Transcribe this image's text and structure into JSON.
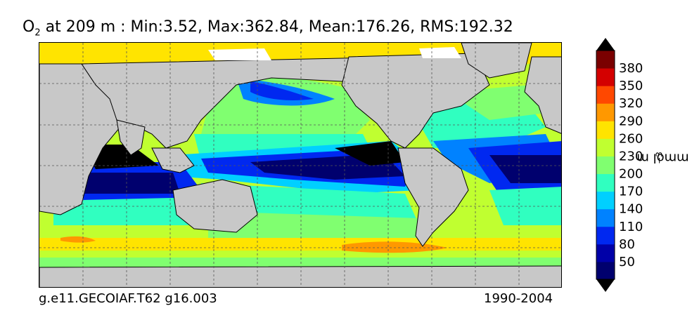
{
  "title": {
    "variable": "O",
    "subscript": "2",
    "text": " at 209 m : Min:3.52, Max:362.84, Mean:176.26, RMS:192.32"
  },
  "footer": {
    "case_name": "g.e11.GECOIAF.T62 g16.003",
    "period": "1990-2004"
  },
  "colorbar": {
    "unit_base": "mmol m",
    "unit_exponent": "−3",
    "tick_labels": [
      "50",
      "80",
      "110",
      "140",
      "170",
      "200",
      "230",
      "260",
      "290",
      "320",
      "350",
      "380"
    ],
    "level_colors": [
      "#00006e",
      "#0000a8",
      "#0028f0",
      "#0082ff",
      "#00d0ff",
      "#30ffc0",
      "#80ff70",
      "#c0ff30",
      "#ffe400",
      "#ff9800",
      "#ff4800",
      "#d40000",
      "#7a0000"
    ],
    "extend": "both"
  },
  "colors": {
    "land": "#c8c8c8",
    "grid": "#555555"
  }
}
